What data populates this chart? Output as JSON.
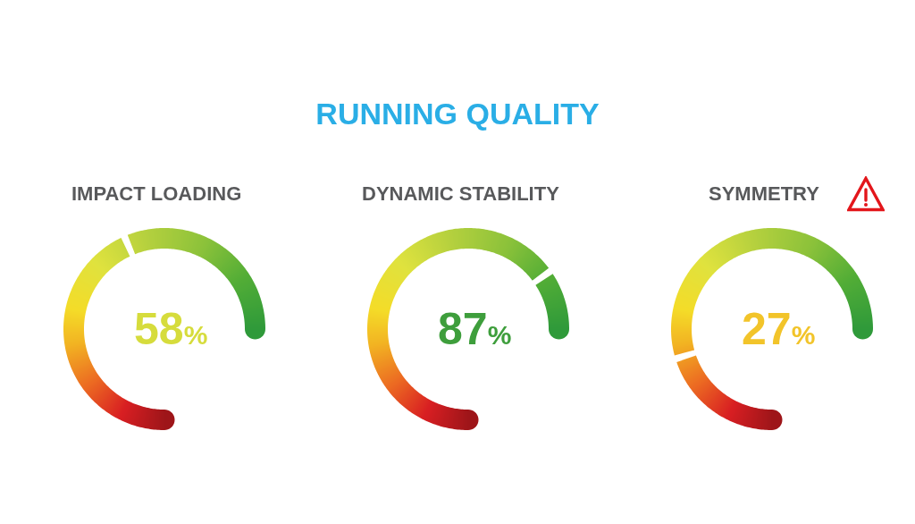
{
  "chart_data": {
    "type": "other",
    "title": "RUNNING QUALITY",
    "categories": [
      "IMPACT LOADING",
      "DYNAMIC STABILITY",
      "SYMMETRY"
    ],
    "values": [
      58,
      87,
      27
    ],
    "value_labels": [
      "58%",
      "87%",
      "27%"
    ],
    "colors": [
      "#d6dc3c",
      "#3e9e3c",
      "#f2c42a"
    ]
  }
}
